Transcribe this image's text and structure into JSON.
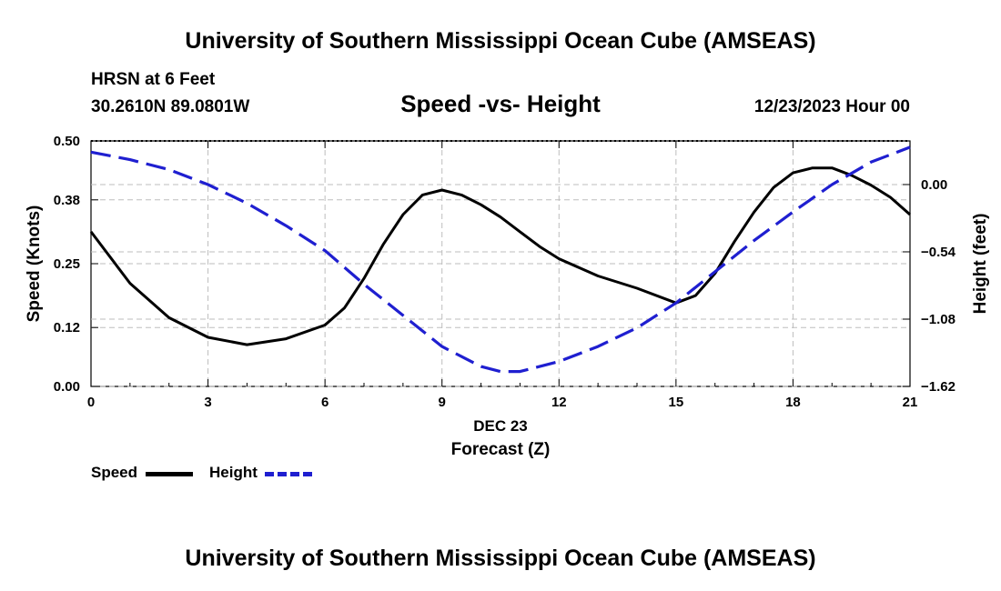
{
  "header": {
    "top_title": "University of Southern Mississippi Ocean Cube (AMSEAS)",
    "station": "HRSN at 6 Feet",
    "coords": "30.2610N  89.0801W",
    "date_time": "12/23/2023 Hour 00",
    "bottom_title": "University of Southern Mississippi Ocean Cube (AMSEAS)"
  },
  "legend": {
    "speed_label": "Speed",
    "height_label": "Height"
  },
  "colors": {
    "speed": "#000000",
    "height": "#1f1fd0",
    "grid": "#bdbdbd"
  },
  "chart_data": {
    "type": "line",
    "title": "Speed -vs- Height",
    "xlabel": "Forecast (Z)",
    "xsublabel": "DEC 23",
    "ylabel": "Speed (Knots)",
    "y2label": "Height (feet)",
    "xlim": [
      0,
      21
    ],
    "ylim": [
      0,
      0.5
    ],
    "y2lim": [
      -1.62,
      0.35
    ],
    "xticks": [
      0,
      3,
      6,
      9,
      12,
      15,
      18,
      21
    ],
    "xtick_labels": [
      "0",
      "3",
      "6",
      "9",
      "12",
      "15",
      "18",
      "21"
    ],
    "yticks": [
      0.0,
      0.12,
      0.25,
      0.38,
      0.5
    ],
    "ytick_labels": [
      "0.00",
      "0.12",
      "0.25",
      "0.38",
      "0.50"
    ],
    "y2ticks": [
      0.0,
      -0.54,
      -1.08,
      -1.62
    ],
    "y2tick_labels": [
      "0.00",
      "−0.54",
      "−1.08",
      "−1.62"
    ],
    "grid": true,
    "series": [
      {
        "name": "Speed",
        "axis": "left",
        "style": "solid",
        "x": [
          0,
          1,
          2,
          3,
          4,
          5,
          6,
          6.5,
          7,
          7.5,
          8,
          8.5,
          9,
          9.5,
          10,
          10.5,
          11,
          11.5,
          12,
          13,
          14,
          15,
          15.5,
          16,
          16.5,
          17,
          17.5,
          18,
          18.5,
          19,
          19.5,
          20,
          20.5,
          21
        ],
        "values": [
          0.315,
          0.21,
          0.14,
          0.1,
          0.085,
          0.097,
          0.125,
          0.16,
          0.22,
          0.29,
          0.35,
          0.39,
          0.4,
          0.39,
          0.37,
          0.345,
          0.315,
          0.285,
          0.26,
          0.225,
          0.2,
          0.17,
          0.185,
          0.23,
          0.295,
          0.355,
          0.405,
          0.435,
          0.445,
          0.445,
          0.43,
          0.41,
          0.385,
          0.35
        ]
      },
      {
        "name": "Height",
        "axis": "right",
        "style": "dashed",
        "x": [
          0,
          1,
          2,
          3,
          4,
          5,
          6,
          7,
          8,
          9,
          10,
          10.5,
          11,
          12,
          13,
          14,
          15,
          16,
          17,
          18,
          19,
          20,
          21
        ],
        "values": [
          0.26,
          0.2,
          0.12,
          0.0,
          -0.15,
          -0.33,
          -0.53,
          -0.8,
          -1.05,
          -1.3,
          -1.46,
          -1.5,
          -1.5,
          -1.42,
          -1.3,
          -1.15,
          -0.95,
          -0.7,
          -0.45,
          -0.22,
          0.0,
          0.18,
          0.3
        ]
      }
    ]
  }
}
